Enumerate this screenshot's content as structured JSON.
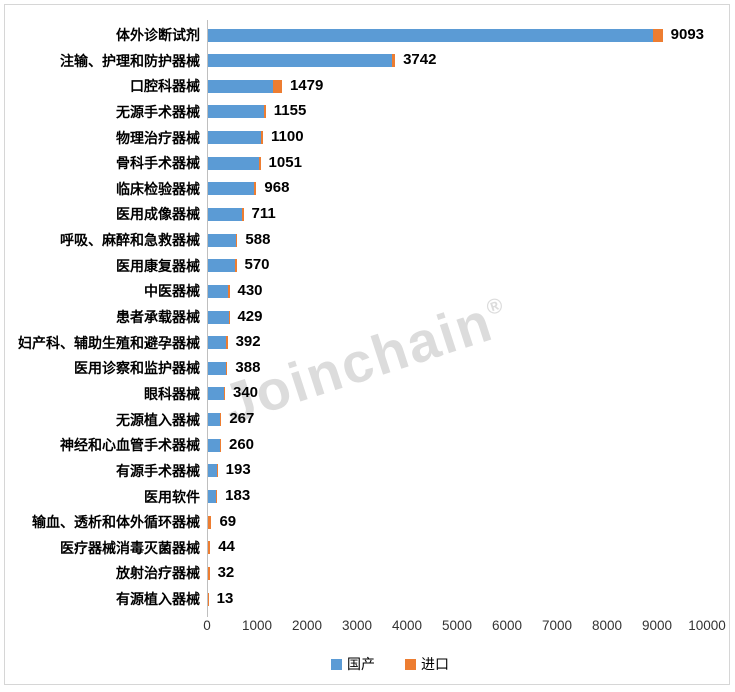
{
  "chart_data": {
    "type": "bar",
    "orientation": "horizontal",
    "stacked": true,
    "title": "",
    "categories": [
      "体外诊断试剂",
      "注输、护理和防护器械",
      "口腔科器械",
      "无源手术器械",
      "物理治疗器械",
      "骨科手术器械",
      "临床检验器械",
      "医用成像器械",
      "呼吸、麻醉和急救器械",
      "医用康复器械",
      "中医器械",
      "患者承载器械",
      "妇产科、辅助生殖和避孕器械",
      "医用诊察和监护器械",
      "眼科器械",
      "无源植入器械",
      "神经和心血管手术器械",
      "有源手术器械",
      "医用软件",
      "输血、透析和体外循环器械",
      "医疗器械消毒灭菌器械",
      "放射治疗器械",
      "有源植入器械"
    ],
    "total_labels": [
      9093,
      3742,
      1479,
      1155,
      1100,
      1051,
      968,
      711,
      588,
      570,
      430,
      429,
      392,
      388,
      340,
      267,
      260,
      193,
      183,
      69,
      44,
      32,
      13
    ],
    "series": [
      {
        "name": "国产",
        "color": "#5B9BD5",
        "values": [
          8893,
          3682,
          1309,
          1120,
          1060,
          1011,
          928,
          671,
          563,
          545,
          405,
          414,
          367,
          363,
          310,
          232,
          230,
          183,
          168,
          9,
          6,
          5,
          2
        ]
      },
      {
        "name": "进口",
        "color": "#ED7D31",
        "values": [
          200,
          60,
          170,
          35,
          40,
          40,
          40,
          40,
          25,
          25,
          25,
          15,
          25,
          25,
          30,
          35,
          30,
          10,
          15,
          60,
          38,
          27,
          11
        ]
      }
    ],
    "import_split_estimated_from_pixels": true,
    "xlim": [
      0,
      10000
    ],
    "x_ticks": [
      0,
      1000,
      2000,
      3000,
      4000,
      5000,
      6000,
      7000,
      8000,
      9000,
      10000
    ],
    "grid": false,
    "legend_position": "bottom"
  },
  "legend": {
    "items": [
      {
        "label": "国产",
        "color": "#5B9BD5"
      },
      {
        "label": "进口",
        "color": "#ED7D31"
      }
    ]
  },
  "watermark": {
    "text": "Joinchain",
    "mark": "®"
  },
  "colors": {
    "domestic": "#5B9BD5",
    "import": "#ED7D31",
    "axis_line": "#BFBFBF",
    "text": "#000000",
    "tick_text": "#333333",
    "watermark": "#DCDCDC",
    "frame_border": "#D6D6D6"
  }
}
